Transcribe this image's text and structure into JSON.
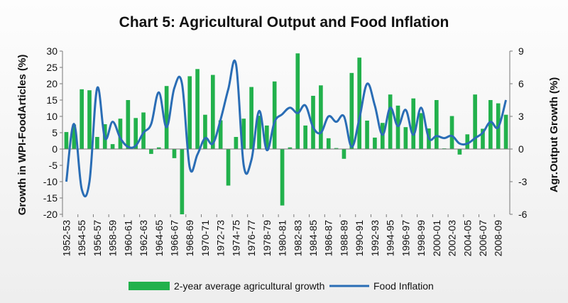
{
  "chart_data": {
    "type": "bar+line",
    "title": "Chart 5: Agricultural Output and Food Inflation",
    "ylabel_left": "Growth in WPI-FoodArticles (%)",
    "ylabel_right": "Agr.Output Growth (%)",
    "xlabel": "",
    "ylim_left": [
      -20,
      30
    ],
    "yticks_left": [
      -20,
      -15,
      -10,
      -5,
      0,
      5,
      10,
      15,
      20,
      25,
      30
    ],
    "ylim_right": [
      -6,
      9
    ],
    "yticks_right": [
      -6,
      -3,
      0,
      3,
      6,
      9
    ],
    "x_tick_labels": [
      "1952-53",
      "1954-55",
      "1956-57",
      "1958-59",
      "1960-61",
      "1962-63",
      "1964-65",
      "1966-67",
      "1968-69",
      "1970-71",
      "1972-73",
      "1974-75",
      "1976-77",
      "1978-79",
      "1980-81",
      "1982-83",
      "1984-85",
      "1986-87",
      "1988-89",
      "1990-91",
      "1992-93",
      "1994-95",
      "1996-97",
      "1998-99",
      "2000-01",
      "2002-03",
      "2004-05",
      "2006-07",
      "2008-09"
    ],
    "categories": [
      "1952-53",
      "1953-54",
      "1954-55",
      "1955-56",
      "1956-57",
      "1957-58",
      "1958-59",
      "1959-60",
      "1960-61",
      "1961-62",
      "1962-63",
      "1963-64",
      "1964-65",
      "1965-66",
      "1966-67",
      "1967-68",
      "1968-69",
      "1969-70",
      "1970-71",
      "1971-72",
      "1972-73",
      "1973-74",
      "1974-75",
      "1975-76",
      "1976-77",
      "1977-78",
      "1978-79",
      "1979-80",
      "1980-81",
      "1981-82",
      "1982-83",
      "1983-84",
      "1984-85",
      "1985-86",
      "1986-87",
      "1987-88",
      "1988-89",
      "1989-90",
      "1990-91",
      "1991-92",
      "1992-93",
      "1993-94",
      "1994-95",
      "1995-96",
      "1996-97",
      "1997-98",
      "1998-99",
      "1999-00",
      "2000-01",
      "2001-02",
      "2002-03",
      "2003-04",
      "2004-05",
      "2005-06",
      "2006-07",
      "2007-08",
      "2008-09",
      "2009-10"
    ],
    "series": [
      {
        "name": "2-year average agricultural growth",
        "type": "bar",
        "axis": "left",
        "color": "#22b14c",
        "values": [
          5.2,
          7.5,
          18.3,
          18,
          3.7,
          7.6,
          1.5,
          9.3,
          15,
          9.5,
          11.2,
          -1.5,
          0.5,
          19.3,
          -2.8,
          -20,
          22.3,
          24.5,
          10.5,
          22.7,
          8.8,
          -11.2,
          3.7,
          9.3,
          19,
          10.2,
          7.2,
          20.7,
          -17.3,
          0.5,
          29.3,
          7.2,
          16.3,
          19.5,
          3.3,
          0.3,
          -3,
          23.3,
          28,
          8.7,
          3.5,
          8,
          16.7,
          13.3,
          6.7,
          15.5,
          11,
          6.3,
          15,
          0.2,
          10.1,
          -1.7,
          4.5,
          16.7,
          6.2,
          15,
          14,
          10.5
        ]
      },
      {
        "name": "Food Inflation",
        "type": "line",
        "axis": "right",
        "color": "#2a6db5",
        "values": [
          -3,
          2.3,
          -3.7,
          -3,
          5.6,
          1,
          2.5,
          1,
          0.2,
          0.3,
          1.5,
          2.3,
          5.2,
          2,
          5.6,
          6,
          -1.7,
          -0.5,
          1,
          0.5,
          2.7,
          5.5,
          7.8,
          -1.5,
          -1,
          3.5,
          -0.1,
          2.5,
          3.2,
          3.8,
          3.3,
          4,
          2,
          1.5,
          3,
          2.5,
          3,
          0.2,
          2.8,
          6,
          4,
          1.3,
          3.8,
          2.1,
          3.6,
          1.3,
          3.8,
          1,
          1.2,
          1,
          1.2,
          0.5,
          0.5,
          1,
          1.5,
          2.5,
          2,
          4.5
        ]
      }
    ],
    "legend": [
      "2-year average agricultural growth",
      "Food Inflation"
    ],
    "legend_position": "bottom",
    "grid": false
  }
}
